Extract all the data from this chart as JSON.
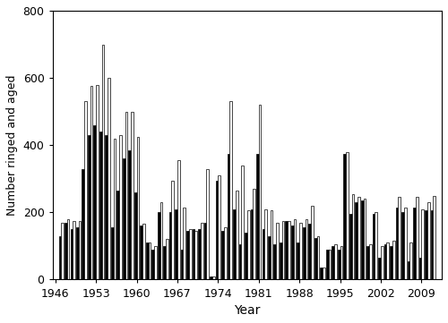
{
  "years": [
    1947,
    1948,
    1949,
    1950,
    1951,
    1952,
    1953,
    1954,
    1955,
    1956,
    1957,
    1958,
    1959,
    1960,
    1961,
    1962,
    1963,
    1964,
    1965,
    1966,
    1967,
    1968,
    1969,
    1970,
    1971,
    1972,
    1973,
    1974,
    1975,
    1976,
    1977,
    1978,
    1979,
    1980,
    1981,
    1982,
    1983,
    1984,
    1985,
    1986,
    1987,
    1988,
    1989,
    1990,
    1991,
    1992,
    1993,
    1994,
    1995,
    1996,
    1997,
    1998,
    1999,
    2000,
    2001,
    2002,
    2003,
    2004,
    2005,
    2006,
    2007,
    2008,
    2009,
    2010,
    2011
  ],
  "juveniles": [
    130,
    170,
    150,
    155,
    330,
    430,
    460,
    440,
    430,
    155,
    265,
    360,
    385,
    260,
    160,
    110,
    90,
    200,
    100,
    200,
    210,
    90,
    145,
    150,
    150,
    170,
    10,
    295,
    145,
    375,
    210,
    105,
    140,
    210,
    375,
    150,
    130,
    105,
    110,
    175,
    160,
    110,
    155,
    165,
    125,
    35,
    90,
    100,
    90,
    375,
    195,
    230,
    235,
    100,
    195,
    65,
    105,
    100,
    215,
    200,
    55,
    215,
    65,
    205,
    205
  ],
  "adults": [
    170,
    180,
    175,
    175,
    530,
    575,
    580,
    700,
    600,
    420,
    430,
    500,
    500,
    425,
    165,
    110,
    100,
    230,
    120,
    295,
    355,
    215,
    150,
    145,
    170,
    330,
    10,
    310,
    155,
    530,
    265,
    340,
    205,
    270,
    520,
    210,
    205,
    170,
    175,
    175,
    180,
    170,
    180,
    220,
    130,
    35,
    90,
    105,
    100,
    380,
    255,
    245,
    240,
    105,
    200,
    100,
    110,
    115,
    245,
    215,
    110,
    245,
    210,
    230,
    250
  ],
  "ylim": [
    0,
    800
  ],
  "yticks": [
    0,
    200,
    400,
    600,
    800
  ],
  "xlabel": "Year",
  "ylabel": "Number ringed and aged",
  "xtick_labels": [
    1946,
    1953,
    1960,
    1967,
    1974,
    1981,
    1988,
    1995,
    2002,
    2009
  ],
  "juvenile_color": "#000000",
  "adult_color": "#ffffff",
  "adult_edgecolor": "#000000",
  "xmin": 1945.5,
  "xmax": 2012.5
}
